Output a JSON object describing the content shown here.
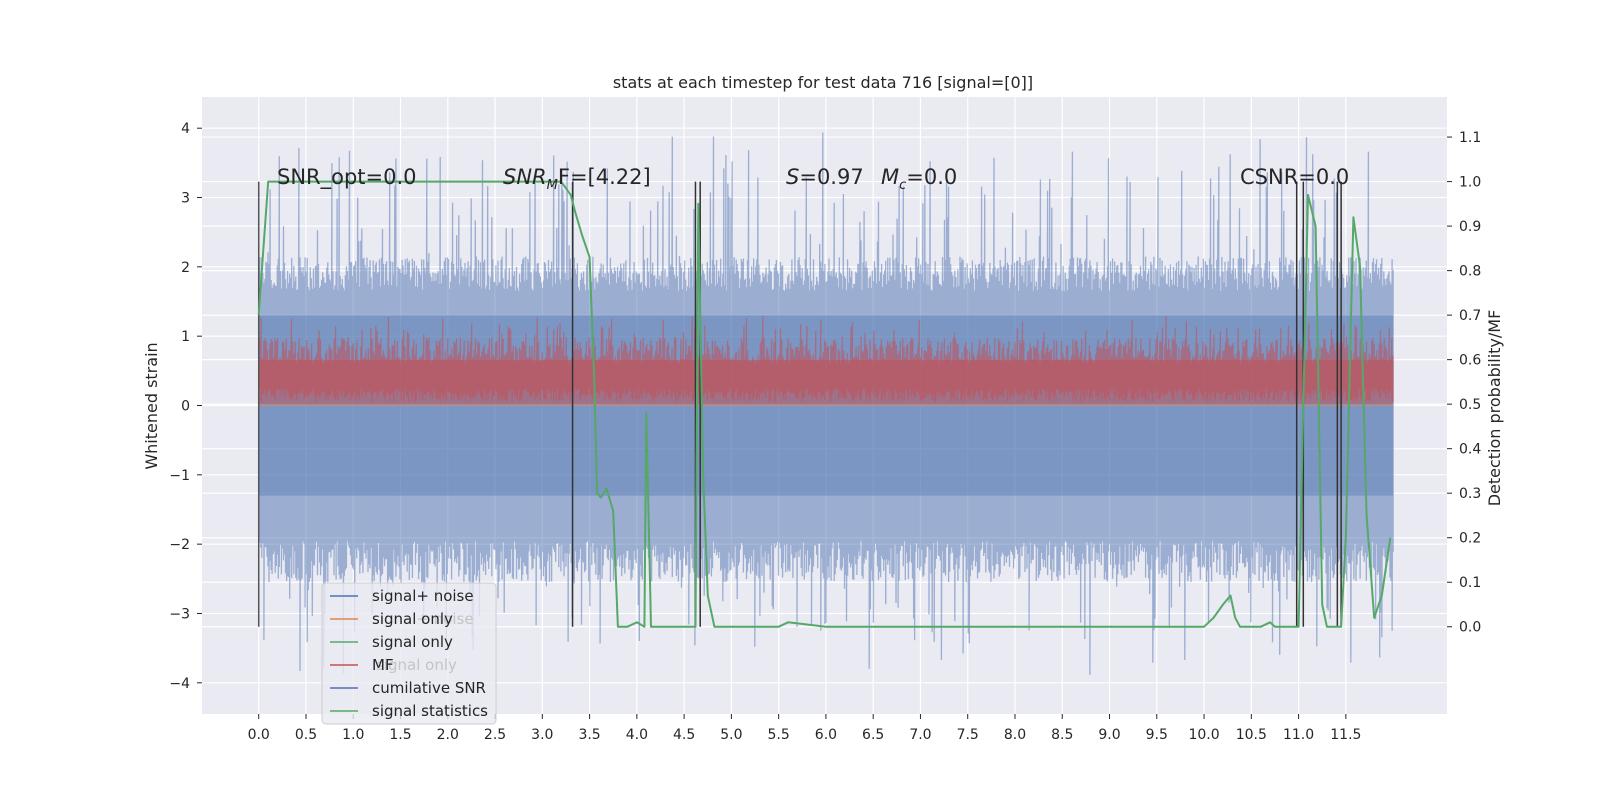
{
  "chart_data": {
    "type": "line",
    "title": "stats at each timestep for test data 716 [signal=[0]]",
    "ylabel_left": "Whitened strain",
    "ylabel_right": "Detection probability/MF",
    "xlim": [
      -0.6,
      12.57
    ],
    "ylim_left": [
      -4.45,
      4.45
    ],
    "ylim_right": [
      -0.196,
      1.19
    ],
    "x_ticks": [
      0.0,
      0.5,
      1.0,
      1.5,
      2.0,
      2.5,
      3.0,
      3.5,
      4.0,
      4.5,
      5.0,
      5.5,
      6.0,
      6.5,
      7.0,
      7.5,
      8.0,
      8.5,
      9.0,
      9.5,
      10.0,
      10.5,
      11.0,
      11.5
    ],
    "x_tick_labels": [
      "0.0",
      "0.5",
      "1.0",
      "1.5",
      "2.0",
      "2.5",
      "3.0",
      "3.5",
      "4.0",
      "4.5",
      "5.0",
      "5.5",
      "6.0",
      "6.5",
      "7.0",
      "7.5",
      "8.0",
      "8.5",
      "9.0",
      "9.5",
      "10.0",
      "10.5",
      "11.0",
      "11.5"
    ],
    "y_left_ticks": [
      -4,
      -3,
      -2,
      -1,
      0,
      1,
      2,
      3,
      4
    ],
    "y_left_tick_labels": [
      "−4",
      "−3",
      "−2",
      "−1",
      "0",
      "1",
      "2",
      "3",
      "4"
    ],
    "y_right_ticks": [
      0.0,
      0.1,
      0.2,
      0.3,
      0.4,
      0.5,
      0.6,
      0.7,
      0.8,
      0.9,
      1.0,
      1.1
    ],
    "y_right_tick_labels": [
      "0.0",
      "0.1",
      "0.2",
      "0.3",
      "0.4",
      "0.5",
      "0.6",
      "0.7",
      "0.8",
      "0.9",
      "1.0",
      "1.1"
    ],
    "grid": true,
    "legend_placement": "lower-left",
    "legend_entries": [
      {
        "name": "signal+ noise",
        "color": "#4c72b0",
        "faded": false
      },
      {
        "name": "signal only",
        "color": "#dd8452",
        "faded": false
      },
      {
        "name": "signal only",
        "color": "#55a868",
        "faded": false
      },
      {
        "name": "MF",
        "color": "#c44e52",
        "faded": false
      },
      {
        "name": "cumilative SNR",
        "color": "#4c72b0",
        "faded": false
      },
      {
        "name": "signal statistics",
        "color": "#55a868",
        "faded": false
      }
    ],
    "ghost_legend_entries": [
      "signal+ noise",
      "signal only",
      "signal statistics"
    ],
    "annotations": {
      "snr_opt": "SNR_opt=0.0",
      "snr_mf_prefix": "SNR",
      "snr_mf_sub": "M",
      "snr_mf_suffix": "F=[4.22]",
      "s_prefix": "S",
      "s_value": "=0.97",
      "mc_prefix": "M",
      "mc_sub": "c",
      "mc_value": "=0.0",
      "csnr": "CSNR=0.0"
    },
    "noise_envelope": {
      "x_range": [
        0.0,
        12.0
      ],
      "typical_upper": 2.0,
      "typical_lower": -2.4,
      "max_value": 4.07,
      "min_value": -4.0
    },
    "mf_band": {
      "x_range": [
        0.0,
        12.0
      ],
      "typical_lower_right": 0.5,
      "typical_upper_right": 0.62
    },
    "signal_statistics": {
      "color": "#55a868",
      "x": [
        0.0,
        0.05,
        0.1,
        0.2,
        0.3,
        3.2,
        3.3,
        3.35,
        3.42,
        3.5,
        3.55,
        3.58,
        3.62,
        3.68,
        3.75,
        3.8,
        3.9,
        4.0,
        4.08,
        4.1,
        4.15,
        4.25,
        4.4,
        4.55,
        4.62,
        4.65,
        4.7,
        4.75,
        4.82,
        5.0,
        5.2,
        5.35,
        5.5,
        5.6,
        6.0,
        7.0,
        8.0,
        9.0,
        9.5,
        10.0,
        10.1,
        10.2,
        10.28,
        10.33,
        10.38,
        10.45,
        10.6,
        10.7,
        10.75,
        10.82,
        10.95,
        11.0,
        11.05,
        11.1,
        11.18,
        11.25,
        11.3,
        11.38,
        11.45,
        11.5,
        11.58,
        11.65,
        11.72,
        11.8,
        11.88,
        11.97
      ],
      "y": [
        0.7,
        0.85,
        1.0,
        1.0,
        1.0,
        1.0,
        0.97,
        0.93,
        0.88,
        0.83,
        0.55,
        0.3,
        0.29,
        0.31,
        0.26,
        0.0,
        0.0,
        0.01,
        0.0,
        0.48,
        0.0,
        0.0,
        0.0,
        0.0,
        0.0,
        0.95,
        0.35,
        0.07,
        0.0,
        0.0,
        0.0,
        0.0,
        0.0,
        0.01,
        0.0,
        0.0,
        0.0,
        0.0,
        0.0,
        0.0,
        0.02,
        0.05,
        0.07,
        0.02,
        0.0,
        0.0,
        0.0,
        0.01,
        0.0,
        0.0,
        0.0,
        0.0,
        0.5,
        0.97,
        0.9,
        0.05,
        0.0,
        0.0,
        0.0,
        0.2,
        0.92,
        0.81,
        0.25,
        0.02,
        0.07,
        0.2
      ]
    },
    "vertical_markers": [
      {
        "x": 0.0,
        "y_range": [
          0.0,
          1.0
        ],
        "color": "#555555"
      },
      {
        "x": 3.32,
        "y_range": [
          0.0,
          1.0
        ],
        "color": "#333333"
      },
      {
        "x": 4.62,
        "y_range": [
          0.0,
          1.0
        ],
        "color": "#333333"
      },
      {
        "x": 4.67,
        "y_range": [
          0.0,
          1.0
        ],
        "color": "#333333"
      },
      {
        "x": 10.98,
        "y_range": [
          0.0,
          1.0
        ],
        "color": "#333333"
      },
      {
        "x": 11.05,
        "y_range": [
          0.0,
          1.0
        ],
        "color": "#333333"
      },
      {
        "x": 11.41,
        "y_range": [
          0.0,
          1.0
        ],
        "color": "#333333"
      },
      {
        "x": 11.45,
        "y_range": [
          0.0,
          1.0
        ],
        "color": "#333333"
      }
    ],
    "colors": {
      "background": "#eaeaf2",
      "grid": "#ffffff",
      "noise": "#4c72b0",
      "mf": "#c44e52",
      "stats": "#55a868",
      "zero_line": "#dd8452"
    }
  }
}
